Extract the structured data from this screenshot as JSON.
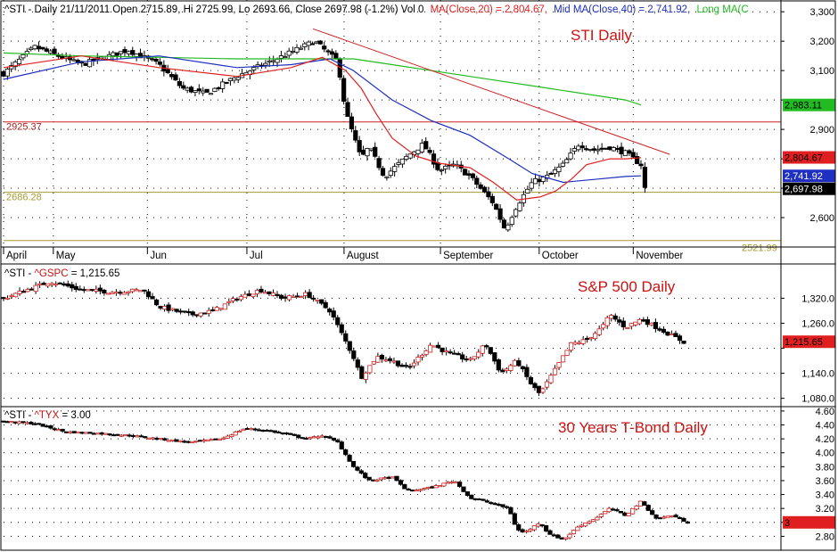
{
  "colors": {
    "background": "#ffffff",
    "grid": "#000000",
    "candle_up": "#ffffff",
    "candle_down": "#000000",
    "candle_edge": "#000000",
    "ma20": "#e02020",
    "ma40": "#1f2fbf",
    "long_ma": "#22bb22",
    "support": "#a89a30",
    "resistance": "#cc2222",
    "trendline": "#cc2222",
    "title_red": "#cc1111",
    "label_red": "#aa2222"
  },
  "chart_data": [
    {
      "type": "candlestick",
      "name": "sti",
      "header": {
        "ticker": "^STI - Daily 21/11/2011 Open 2715.89, Hi 2725.99, Lo 2693.66, Close 2697.98 (-1.2%) Vol 0",
        "ma20": "MA(Close,20) = 2,804.67,",
        "ma40": "Mid MA(Close,40) = 2,741.92,",
        "longma": "Long MA(C"
      },
      "title": "STI Daily",
      "ylim": [
        2500,
        3340
      ],
      "yticks": [
        2600,
        2700,
        2800,
        2900,
        3000,
        3100,
        3200,
        3300
      ],
      "ytick_labels": [
        "2,600",
        "",
        "",
        "2,900",
        "",
        "3,100",
        "3,200",
        "3,300"
      ],
      "value_tags": [
        {
          "text": "2,983.11",
          "value": 2983.11,
          "bg": "#22bb22",
          "fg": "#000000"
        },
        {
          "text": "2,804.67",
          "value": 2804.67,
          "bg": "#e02020",
          "fg": "#000000"
        },
        {
          "text": "2,741.92",
          "value": 2741.92,
          "bg": "#1f2fbf",
          "fg": "#ffffff"
        },
        {
          "text": "2,697.98",
          "value": 2697.98,
          "bg": "#000000",
          "fg": "#ffffff"
        }
      ],
      "levels": [
        {
          "value": 2925.37,
          "label": "2925.37",
          "color": "resistance"
        },
        {
          "value": 2686.28,
          "label": "2686.28",
          "color": "support"
        },
        {
          "value": 2521.99,
          "label": "2521.99",
          "color": "support"
        }
      ],
      "trendline": [
        [
          0.398,
          3242
        ],
        [
          0.857,
          2815
        ]
      ],
      "key_points": [
        [
          0.0,
          3090
        ],
        [
          0.04,
          3180
        ],
        [
          0.1,
          3120
        ],
        [
          0.16,
          3170
        ],
        [
          0.2,
          3120
        ],
        [
          0.23,
          3040
        ],
        [
          0.26,
          3020
        ],
        [
          0.3,
          3080
        ],
        [
          0.36,
          3150
        ],
        [
          0.4,
          3200
        ],
        [
          0.43,
          3130
        ],
        [
          0.44,
          2960
        ],
        [
          0.46,
          2800
        ],
        [
          0.47,
          2840
        ],
        [
          0.49,
          2740
        ],
        [
          0.52,
          2810
        ],
        [
          0.54,
          2850
        ],
        [
          0.56,
          2760
        ],
        [
          0.58,
          2780
        ],
        [
          0.6,
          2740
        ],
        [
          0.63,
          2650
        ],
        [
          0.645,
          2560
        ],
        [
          0.66,
          2640
        ],
        [
          0.68,
          2720
        ],
        [
          0.7,
          2740
        ],
        [
          0.72,
          2780
        ],
        [
          0.74,
          2850
        ],
        [
          0.76,
          2830
        ],
        [
          0.78,
          2840
        ],
        [
          0.8,
          2820
        ],
        [
          0.82,
          2780
        ],
        [
          0.825,
          2700
        ]
      ],
      "ma20": [
        [
          0.0,
          3110
        ],
        [
          0.1,
          3150
        ],
        [
          0.2,
          3110
        ],
        [
          0.3,
          3080
        ],
        [
          0.37,
          3110
        ],
        [
          0.41,
          3145
        ],
        [
          0.44,
          3100
        ],
        [
          0.46,
          3040
        ],
        [
          0.48,
          2950
        ],
        [
          0.5,
          2870
        ],
        [
          0.53,
          2810
        ],
        [
          0.56,
          2785
        ],
        [
          0.6,
          2770
        ],
        [
          0.63,
          2720
        ],
        [
          0.66,
          2660
        ],
        [
          0.69,
          2670
        ],
        [
          0.71,
          2690
        ],
        [
          0.73,
          2730
        ],
        [
          0.75,
          2780
        ],
        [
          0.78,
          2800
        ],
        [
          0.8,
          2800
        ],
        [
          0.82,
          2804
        ]
      ],
      "ma40": [
        [
          0.0,
          3070
        ],
        [
          0.1,
          3130
        ],
        [
          0.2,
          3150
        ],
        [
          0.3,
          3110
        ],
        [
          0.37,
          3120
        ],
        [
          0.42,
          3140
        ],
        [
          0.45,
          3100
        ],
        [
          0.5,
          3000
        ],
        [
          0.55,
          2930
        ],
        [
          0.6,
          2880
        ],
        [
          0.65,
          2800
        ],
        [
          0.68,
          2750
        ],
        [
          0.72,
          2720
        ],
        [
          0.76,
          2730
        ],
        [
          0.8,
          2740
        ],
        [
          0.82,
          2742
        ]
      ],
      "longma": [
        [
          0.0,
          3160
        ],
        [
          0.1,
          3150
        ],
        [
          0.2,
          3145
        ],
        [
          0.3,
          3140
        ],
        [
          0.4,
          3140
        ],
        [
          0.45,
          3140
        ],
        [
          0.5,
          3120
        ],
        [
          0.6,
          3080
        ],
        [
          0.7,
          3040
        ],
        [
          0.8,
          3000
        ],
        [
          0.82,
          2983
        ]
      ],
      "months": [
        {
          "label": "April",
          "pos": 0.0
        },
        {
          "label": "May",
          "pos": 0.064
        },
        {
          "label": "Jun",
          "pos": 0.185
        },
        {
          "label": "Jul",
          "pos": 0.313
        },
        {
          "label": "August",
          "pos": 0.438
        },
        {
          "label": "September",
          "pos": 0.562
        },
        {
          "label": "October",
          "pos": 0.689
        },
        {
          "label": "November",
          "pos": 0.81
        }
      ]
    },
    {
      "type": "candlestick",
      "name": "spx",
      "header": {
        "prefix": "^STI - ",
        "ticker": "^GSPC",
        "rest": " = 1,215.65"
      },
      "title": "S&P 500 Daily",
      "ylim": [
        1060,
        1400
      ],
      "yticks": [
        1080,
        1140,
        1200,
        1260,
        1320
      ],
      "ytick_labels": [
        "1,080.0",
        "1,140.0",
        "",
        "1,260.0",
        "1,320.0"
      ],
      "value_tags": [
        {
          "text": "1,215.65",
          "value": 1215.65,
          "bg": "#e02020",
          "fg": "#000000"
        }
      ],
      "key_points": [
        [
          0.0,
          1320
        ],
        [
          0.03,
          1340
        ],
        [
          0.06,
          1360
        ],
        [
          0.1,
          1340
        ],
        [
          0.14,
          1335
        ],
        [
          0.18,
          1340
        ],
        [
          0.2,
          1300
        ],
        [
          0.24,
          1280
        ],
        [
          0.27,
          1290
        ],
        [
          0.3,
          1320
        ],
        [
          0.33,
          1340
        ],
        [
          0.36,
          1320
        ],
        [
          0.39,
          1330
        ],
        [
          0.42,
          1290
        ],
        [
          0.45,
          1180
        ],
        [
          0.46,
          1130
        ],
        [
          0.48,
          1180
        ],
        [
          0.5,
          1170
        ],
        [
          0.52,
          1150
        ],
        [
          0.55,
          1210
        ],
        [
          0.57,
          1190
        ],
        [
          0.6,
          1170
        ],
        [
          0.62,
          1210
        ],
        [
          0.64,
          1140
        ],
        [
          0.66,
          1170
        ],
        [
          0.68,
          1110
        ],
        [
          0.69,
          1090
        ],
        [
          0.71,
          1150
        ],
        [
          0.73,
          1210
        ],
        [
          0.75,
          1220
        ],
        [
          0.77,
          1250
        ],
        [
          0.78,
          1280
        ],
        [
          0.8,
          1250
        ],
        [
          0.82,
          1270
        ],
        [
          0.84,
          1250
        ],
        [
          0.86,
          1230
        ],
        [
          0.875,
          1215
        ]
      ]
    },
    {
      "type": "candlestick",
      "name": "tyx",
      "header": {
        "prefix": "^STI - ",
        "ticker": "^TYX",
        "rest": " = 3.00"
      },
      "title": "30 Years T-Bond Daily",
      "ylim": [
        2.6,
        4.65
      ],
      "yticks": [
        2.8,
        3.0,
        3.2,
        3.4,
        3.6,
        3.8,
        4.0,
        4.2,
        4.4,
        4.6
      ],
      "ytick_labels": [
        "2.80",
        "3.00",
        "3.20",
        "3.40",
        "3.60",
        "3.80",
        "4.00",
        "4.20",
        "4.40",
        "4.60"
      ],
      "value_tags": [
        {
          "text": "3",
          "value": 3.0,
          "bg": "#e02020",
          "fg": "#000000"
        }
      ],
      "key_points": [
        [
          0.0,
          4.45
        ],
        [
          0.04,
          4.42
        ],
        [
          0.08,
          4.3
        ],
        [
          0.12,
          4.28
        ],
        [
          0.16,
          4.25
        ],
        [
          0.2,
          4.2
        ],
        [
          0.24,
          4.15
        ],
        [
          0.28,
          4.2
        ],
        [
          0.31,
          4.35
        ],
        [
          0.34,
          4.32
        ],
        [
          0.37,
          4.25
        ],
        [
          0.39,
          4.2
        ],
        [
          0.41,
          4.25
        ],
        [
          0.43,
          4.15
        ],
        [
          0.45,
          3.8
        ],
        [
          0.47,
          3.6
        ],
        [
          0.5,
          3.65
        ],
        [
          0.52,
          3.45
        ],
        [
          0.55,
          3.5
        ],
        [
          0.58,
          3.6
        ],
        [
          0.6,
          3.35
        ],
        [
          0.62,
          3.3
        ],
        [
          0.65,
          3.2
        ],
        [
          0.66,
          2.9
        ],
        [
          0.67,
          2.85
        ],
        [
          0.69,
          3.0
        ],
        [
          0.7,
          2.85
        ],
        [
          0.72,
          2.75
        ],
        [
          0.74,
          2.95
        ],
        [
          0.76,
          3.05
        ],
        [
          0.78,
          3.2
        ],
        [
          0.8,
          3.1
        ],
        [
          0.82,
          3.3
        ],
        [
          0.84,
          3.05
        ],
        [
          0.86,
          3.1
        ],
        [
          0.88,
          3.0
        ]
      ]
    }
  ]
}
